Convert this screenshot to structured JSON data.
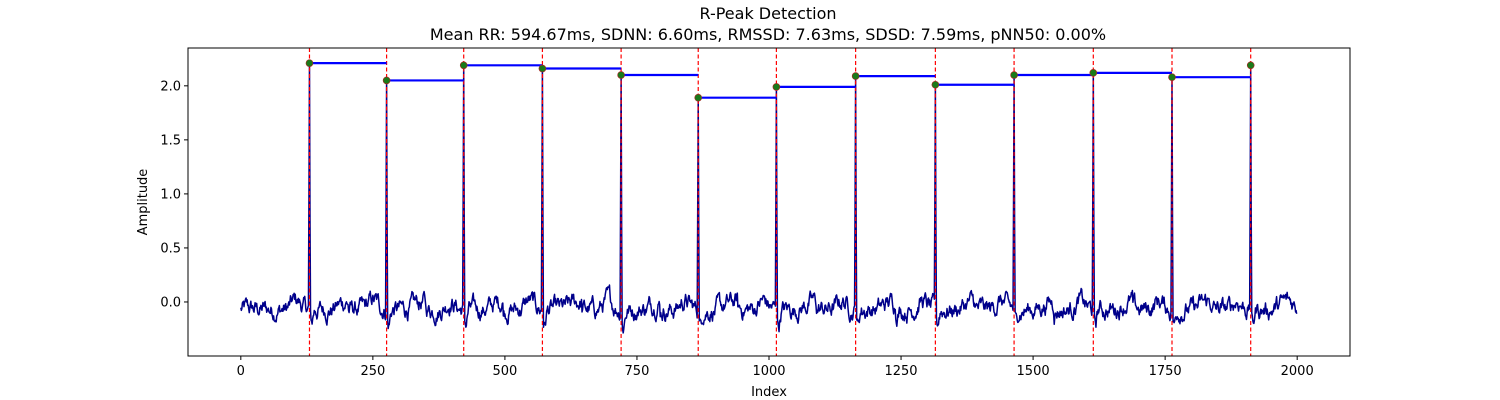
{
  "chart_data": {
    "type": "line",
    "title": "R-Peak Detection",
    "subtitle": "Mean RR: 594.67ms, SDNN: 6.60ms, RMSSD: 7.63ms, SDSD: 7.59ms, pNN50: 0.00%",
    "xlabel": "Index",
    "ylabel": "Amplitude",
    "xlim": [
      -100,
      2100
    ],
    "ylim": [
      -0.5,
      2.35
    ],
    "xticks": [
      0,
      250,
      500,
      750,
      1000,
      1250,
      1500,
      1750,
      2000
    ],
    "yticks": [
      0.0,
      0.5,
      1.0,
      1.5,
      2.0
    ],
    "xtick_labels": [
      "0",
      "250",
      "500",
      "750",
      "1000",
      "1250",
      "1500",
      "1750",
      "2000"
    ],
    "ytick_labels": [
      "0.0",
      "0.5",
      "1.0",
      "1.5",
      "2.0"
    ],
    "grid": false,
    "n_samples": 2000,
    "colors": {
      "signal": "#00008b",
      "peak_marker": "#1a7a1a",
      "peak_marker_edge": "#b22222",
      "peak_line": "#ff0000",
      "rr_segment": "#0000ff"
    },
    "peaks": [
      {
        "x": 130,
        "y": 2.21
      },
      {
        "x": 276,
        "y": 2.05
      },
      {
        "x": 422,
        "y": 2.19
      },
      {
        "x": 571,
        "y": 2.16
      },
      {
        "x": 720,
        "y": 2.1
      },
      {
        "x": 866,
        "y": 1.89
      },
      {
        "x": 1014,
        "y": 1.99
      },
      {
        "x": 1164,
        "y": 2.09
      },
      {
        "x": 1315,
        "y": 2.01
      },
      {
        "x": 1464,
        "y": 2.1
      },
      {
        "x": 1614,
        "y": 2.12
      },
      {
        "x": 1763,
        "y": 2.08
      },
      {
        "x": 1912,
        "y": 2.19
      }
    ]
  }
}
